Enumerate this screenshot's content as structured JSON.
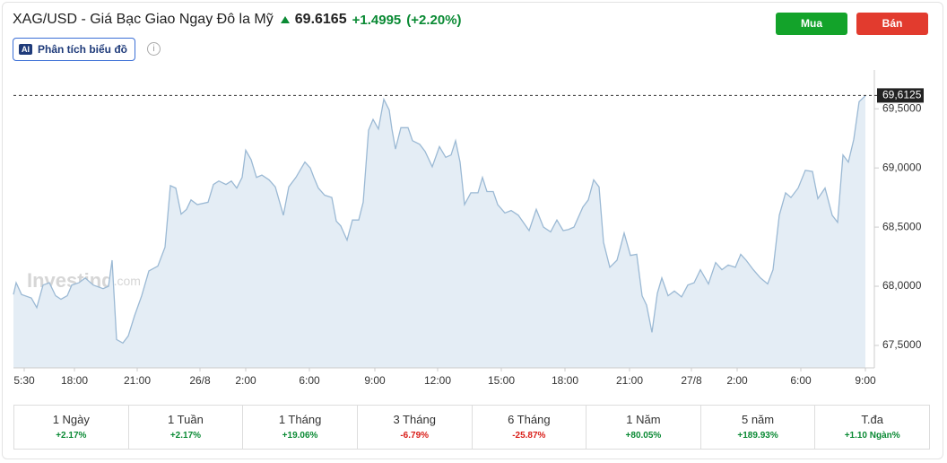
{
  "header": {
    "title": "XAG/USD - Giá Bạc Giao Ngay Đô la Mỹ",
    "price": "69.6165",
    "change": "+1.4995",
    "change_pct": "(+2.20%)",
    "analysis_button": "Phân tích biểu đồ",
    "ai_badge": "AI",
    "buy": "Mua",
    "sell": "Bán"
  },
  "chart_data": {
    "type": "area",
    "watermark": "Investing",
    "watermark_suffix": ".com",
    "color": "#9bb9d4",
    "fill": "#e4edf5",
    "x": [
      0,
      0.3,
      0.9,
      2,
      2.6,
      3.3,
      4,
      4.7,
      5.3,
      6,
      6.5,
      7.3,
      8,
      8.9,
      10,
      10.6,
      11,
      11.5,
      12.2,
      12.8,
      13.5,
      14.3,
      15.1,
      16.1,
      16.9,
      17.5,
      18.1,
      18.7,
      19.3,
      19.8,
      20.5,
      21.7,
      22.3,
      22.9,
      23.7,
      24.3,
      24.9,
      25.5,
      25.9,
      26.5,
      27.1,
      27.7,
      28.5,
      29.2,
      30.1,
      30.7,
      31.5,
      32.5,
      33.1,
      33.5,
      34,
      34.7,
      35.5,
      36,
      36.5,
      37.2,
      37.8,
      38.5,
      39,
      39.6,
      40.1,
      40.7,
      41.3,
      41.9,
      42.2,
      42.6,
      43.2,
      44,
      44.5,
      45.3,
      45.9,
      46.7,
      47.5,
      48.2,
      48.8,
      49.3,
      49.8,
      50.3,
      51,
      51.8,
      52.3,
      52.8,
      53.5,
      54,
      54.8,
      55.5,
      56.3,
      57.5,
      58.3,
      59.1,
      59.9,
      60.6,
      61.3,
      61.9,
      62.5,
      63.5,
      64.1,
      64.7,
      65.3,
      65.8,
      66.5,
      67.3,
      68.1,
      68.8,
      69.5,
      70.1,
      70.6,
      71.2,
      71.8,
      72.3,
      73,
      73.7,
      74.5,
      75.2,
      75.9,
      76.6,
      77.5,
      78.3,
      79,
      79.7,
      80.5,
      81.1,
      81.7,
      82.5,
      83.3,
      84.1,
      84.7,
      85.4,
      86.1,
      86.7,
      87.5,
      88.3,
      89.1,
      89.7,
      90.5,
      91.3,
      91.9,
      92.5,
      93.1,
      93.7,
      94.3,
      95
    ],
    "values": [
      67.93,
      68.03,
      67.93,
      67.9,
      67.82,
      68.01,
      68.03,
      67.92,
      67.89,
      67.92,
      68.01,
      68.03,
      68.07,
      68.01,
      67.98,
      68,
      68.22,
      67.55,
      67.52,
      67.58,
      67.75,
      67.92,
      68.13,
      68.17,
      68.33,
      68.85,
      68.83,
      68.61,
      68.65,
      68.73,
      68.69,
      68.71,
      68.86,
      68.89,
      68.86,
      68.89,
      68.83,
      68.92,
      69.15,
      69.07,
      68.92,
      68.94,
      68.9,
      68.84,
      68.6,
      68.84,
      68.92,
      69.05,
      69,
      68.92,
      68.83,
      68.77,
      68.75,
      68.55,
      68.51,
      68.39,
      68.56,
      68.56,
      68.71,
      69.32,
      69.41,
      69.33,
      69.58,
      69.49,
      69.33,
      69.16,
      69.34,
      69.34,
      69.23,
      69.2,
      69.14,
      69.01,
      69.18,
      69.09,
      69.11,
      69.23,
      69.05,
      68.69,
      68.79,
      68.79,
      68.92,
      68.8,
      68.8,
      68.69,
      68.62,
      68.64,
      68.6,
      68.47,
      68.65,
      68.5,
      68.46,
      68.56,
      68.47,
      68.48,
      68.5,
      68.67,
      68.73,
      68.9,
      68.84,
      68.37,
      68.16,
      68.22,
      68.45,
      68.26,
      68.27,
      67.92,
      67.84,
      67.61,
      67.94,
      68.07,
      67.92,
      67.96,
      67.91,
      68.01,
      68.03,
      68.14,
      68.02,
      68.2,
      68.14,
      68.18,
      68.16,
      68.27,
      68.22,
      68.14,
      68.07,
      68.02,
      68.14,
      68.6,
      68.79,
      68.75,
      68.83,
      68.98,
      68.97,
      68.74,
      68.83,
      68.6,
      68.54,
      69.11,
      69.05,
      69.24,
      69.56,
      69.61
    ],
    "xlim": [
      0,
      95
    ],
    "ylim": [
      67.31,
      69.79
    ],
    "xticks": [
      {
        "value": 1.2,
        "label": "5:30"
      },
      {
        "value": 6.8,
        "label": "18:00"
      },
      {
        "value": 13.8,
        "label": "21:00"
      },
      {
        "value": 20.8,
        "label": "26/8"
      },
      {
        "value": 25.9,
        "label": "2:00"
      },
      {
        "value": 33,
        "label": "6:00"
      },
      {
        "value": 40.3,
        "label": "9:00"
      },
      {
        "value": 47.3,
        "label": "12:00"
      },
      {
        "value": 54.4,
        "label": "15:00"
      },
      {
        "value": 61.5,
        "label": "18:00"
      },
      {
        "value": 68.7,
        "label": "21:00"
      },
      {
        "value": 75.6,
        "label": "27/8"
      },
      {
        "value": 80.7,
        "label": "2:00"
      },
      {
        "value": 87.8,
        "label": "6:00"
      },
      {
        "value": 95,
        "label": "9:00"
      }
    ],
    "yticks": [
      {
        "value": 67.5,
        "label": "67,5000"
      },
      {
        "value": 68,
        "label": "68,0000"
      },
      {
        "value": 68.5,
        "label": "68,5000"
      },
      {
        "value": 69,
        "label": "69,0000"
      },
      {
        "value": 69.5,
        "label": "69,5000"
      }
    ],
    "last_price": {
      "value": 69.6125,
      "label": "69,6125"
    }
  },
  "periods": [
    {
      "label": "1 Ngày",
      "change": "+2.17%",
      "color": "#0a8a34"
    },
    {
      "label": "1 Tuần",
      "change": "+2.17%",
      "color": "#0a8a34"
    },
    {
      "label": "1 Tháng",
      "change": "+19.06%",
      "color": "#0a8a34"
    },
    {
      "label": "3 Tháng",
      "change": "-6.79%",
      "color": "#d91e18"
    },
    {
      "label": "6 Tháng",
      "change": "-25.87%",
      "color": "#d91e18"
    },
    {
      "label": "1 Năm",
      "change": "+80.05%",
      "color": "#0a8a34"
    },
    {
      "label": "5 năm",
      "change": "+189.93%",
      "color": "#0a8a34"
    },
    {
      "label": "T.đa",
      "change": "+1.10 Ngàn%",
      "color": "#0a8a34"
    }
  ]
}
